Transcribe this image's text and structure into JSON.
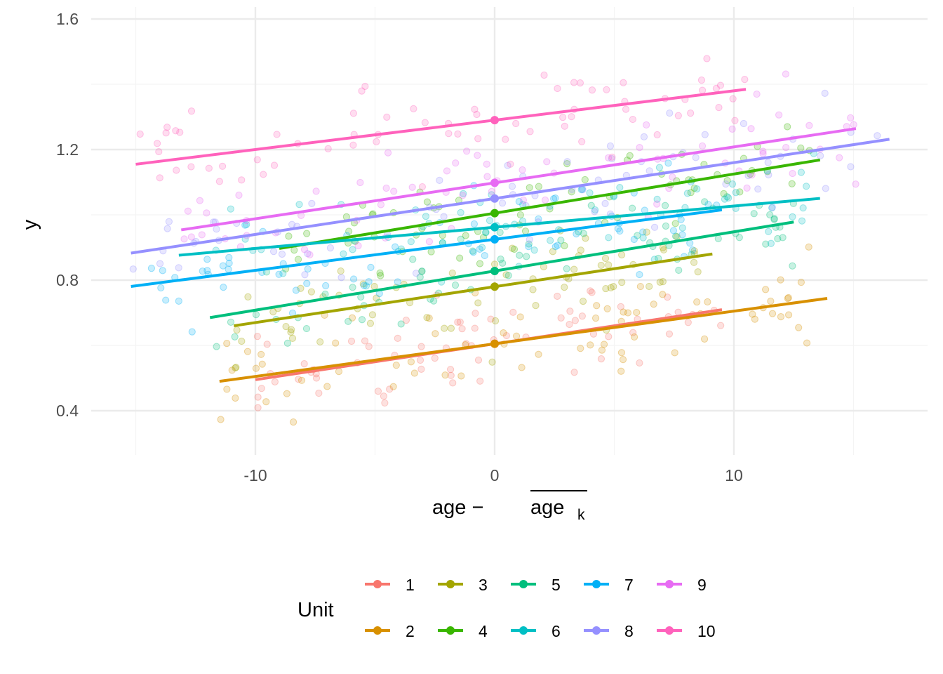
{
  "chart_data": {
    "type": "scatter",
    "xlabel_main": "age −",
    "xlabel_var": "age",
    "xlabel_sub": "k",
    "ylabel": "y",
    "x_ticks": [
      -10,
      0,
      10
    ],
    "x_tick_labels": [
      "-10",
      "0",
      "10"
    ],
    "y_ticks": [
      0.4,
      0.8,
      1.2,
      1.6
    ],
    "y_tick_labels": [
      "0.4",
      "0.8",
      "1.2",
      "1.6"
    ],
    "xlim": [
      -15.8,
      18.1
    ],
    "ylim": [
      0.27,
      1.63
    ],
    "grid": true,
    "legend": {
      "title": "Unit",
      "position": "bottom"
    },
    "series": [
      {
        "name": "1",
        "color": "#F8766D",
        "intercept": 0.605,
        "slope": 0.011,
        "x_range": [
          -10.0,
          9.5
        ]
      },
      {
        "name": "2",
        "color": "#D89000",
        "intercept": 0.605,
        "slope": 0.01,
        "x_range": [
          -11.5,
          13.9
        ]
      },
      {
        "name": "3",
        "color": "#A3A500",
        "intercept": 0.78,
        "slope": 0.011,
        "x_range": [
          -10.9,
          9.1
        ]
      },
      {
        "name": "4",
        "color": "#39B600",
        "intercept": 1.005,
        "slope": 0.012,
        "x_range": [
          -9.0,
          13.6
        ]
      },
      {
        "name": "5",
        "color": "#00BF7D",
        "intercept": 0.828,
        "slope": 0.012,
        "x_range": [
          -11.9,
          12.5
        ]
      },
      {
        "name": "6",
        "color": "#00BFC4",
        "intercept": 0.962,
        "slope": 0.0065,
        "x_range": [
          -13.2,
          13.6
        ]
      },
      {
        "name": "7",
        "color": "#00B0F6",
        "intercept": 0.925,
        "slope": 0.0095,
        "x_range": [
          -15.2,
          9.5
        ]
      },
      {
        "name": "8",
        "color": "#9590FF",
        "intercept": 1.05,
        "slope": 0.011,
        "x_range": [
          -15.2,
          16.5
        ]
      },
      {
        "name": "9",
        "color": "#E76BF3",
        "intercept": 1.098,
        "slope": 0.011,
        "x_range": [
          -13.1,
          15.1
        ]
      },
      {
        "name": "10",
        "color": "#FF62BC",
        "intercept": 1.29,
        "slope": 0.009,
        "x_range": [
          -15.0,
          10.5
        ]
      }
    ]
  }
}
